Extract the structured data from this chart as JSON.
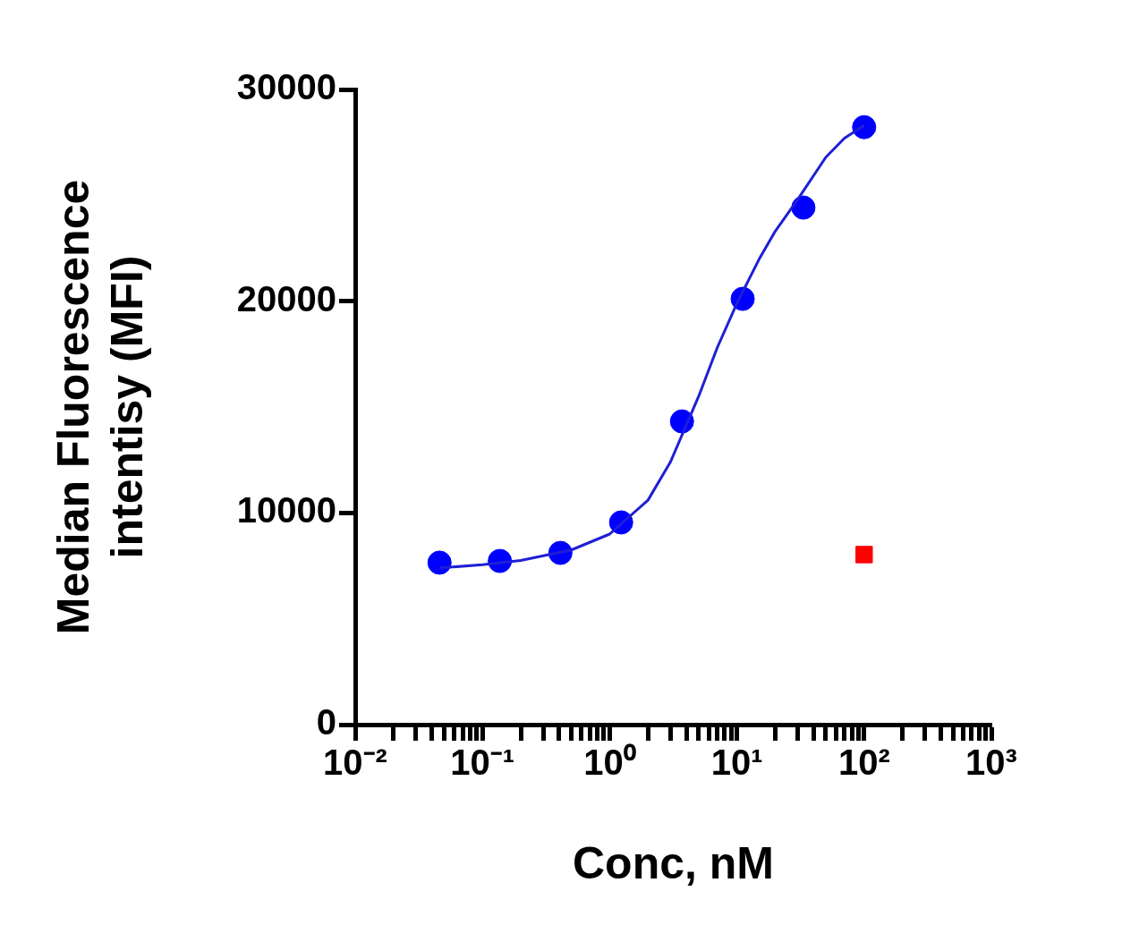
{
  "chart_data": {
    "type": "scatter",
    "xlabel": "Conc, nM",
    "ylabel": "Median Fluorescence\nintentisy (MFI)",
    "log": "x",
    "grid": false,
    "legend": false,
    "xlim": [
      0.01,
      1000
    ],
    "ylim": [
      0,
      30000
    ],
    "xticks": [
      {
        "value": 0.01,
        "label": "10⁻²"
      },
      {
        "value": 0.02,
        "label": null
      },
      {
        "value": 0.03,
        "label": null
      },
      {
        "value": 0.04,
        "label": null
      },
      {
        "value": 0.05,
        "label": null
      },
      {
        "value": 0.06,
        "label": null
      },
      {
        "value": 0.07,
        "label": null
      },
      {
        "value": 0.08,
        "label": null
      },
      {
        "value": 0.09,
        "label": null
      },
      {
        "value": 0.1,
        "label": "10⁻¹"
      },
      {
        "value": 0.2,
        "label": null
      },
      {
        "value": 0.3,
        "label": null
      },
      {
        "value": 0.4,
        "label": null
      },
      {
        "value": 0.5,
        "label": null
      },
      {
        "value": 0.6,
        "label": null
      },
      {
        "value": 0.7,
        "label": null
      },
      {
        "value": 0.8,
        "label": null
      },
      {
        "value": 0.9,
        "label": null
      },
      {
        "value": 1,
        "label": "10⁰"
      },
      {
        "value": 2,
        "label": null
      },
      {
        "value": 3,
        "label": null
      },
      {
        "value": 4,
        "label": null
      },
      {
        "value": 5,
        "label": null
      },
      {
        "value": 6,
        "label": null
      },
      {
        "value": 7,
        "label": null
      },
      {
        "value": 8,
        "label": null
      },
      {
        "value": 9,
        "label": null
      },
      {
        "value": 10,
        "label": "10¹"
      },
      {
        "value": 20,
        "label": null
      },
      {
        "value": 30,
        "label": null
      },
      {
        "value": 40,
        "label": null
      },
      {
        "value": 50,
        "label": null
      },
      {
        "value": 60,
        "label": null
      },
      {
        "value": 70,
        "label": null
      },
      {
        "value": 80,
        "label": null
      },
      {
        "value": 90,
        "label": null
      },
      {
        "value": 100,
        "label": "10²"
      },
      {
        "value": 200,
        "label": null
      },
      {
        "value": 300,
        "label": null
      },
      {
        "value": 400,
        "label": null
      },
      {
        "value": 500,
        "label": null
      },
      {
        "value": 600,
        "label": null
      },
      {
        "value": 700,
        "label": null
      },
      {
        "value": 800,
        "label": null
      },
      {
        "value": 900,
        "label": null
      },
      {
        "value": 1000,
        "label": "10³"
      }
    ],
    "yticks": [
      0,
      10000,
      20000,
      30000
    ],
    "series": [
      {
        "type": "line",
        "marker": "none",
        "line_style": "solid",
        "color": "#1f1fd6",
        "x": [
          0.046,
          0.1,
          0.2,
          0.5,
          1,
          2,
          3,
          5,
          7,
          10,
          15,
          20,
          30,
          50,
          70,
          100
        ],
        "values": [
          7400,
          7550,
          7750,
          8250,
          9000,
          10600,
          12400,
          15500,
          17800,
          19900,
          22000,
          23300,
          24800,
          26800,
          27700,
          28300
        ]
      },
      {
        "marker": "circle",
        "color": "#0000ff",
        "x": [
          0.046,
          0.137,
          0.41,
          1.23,
          3.7,
          11.1,
          33.3,
          100
        ],
        "values": [
          7650,
          7730,
          8110,
          9550,
          14320,
          20110,
          24420,
          28220
        ]
      },
      {
        "marker": "square",
        "color": "#ff0000",
        "x": [
          100
        ],
        "values": [
          8030
        ]
      }
    ]
  }
}
